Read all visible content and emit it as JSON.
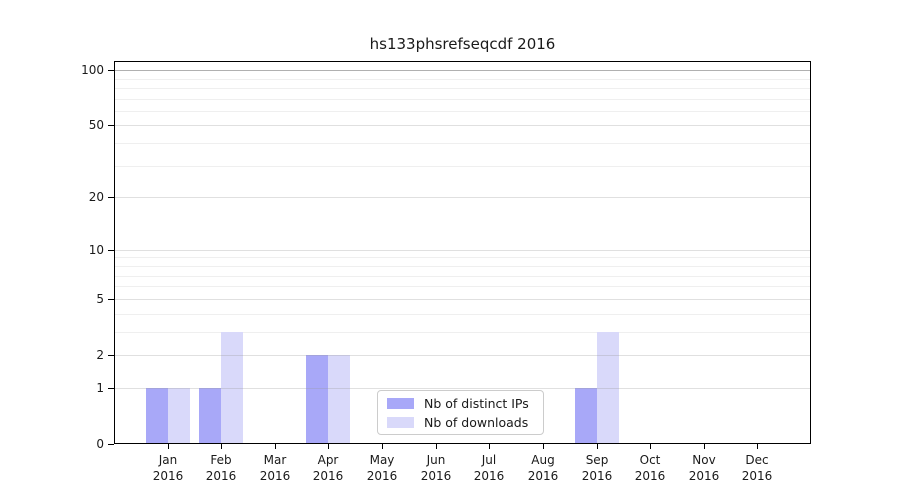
{
  "chart_data": {
    "type": "bar",
    "title": "hs133phsrefseqcdf 2016",
    "categories": [
      "Jan",
      "Feb",
      "Mar",
      "Apr",
      "May",
      "Jun",
      "Jul",
      "Aug",
      "Sep",
      "Oct",
      "Nov",
      "Dec"
    ],
    "x_tick_year": "2016",
    "series": [
      {
        "key": "distinct-ips",
        "name": "Nb of distinct IPs",
        "color": "#a8a8f8",
        "values": [
          1,
          1,
          0,
          2,
          0,
          0,
          0,
          0,
          1,
          0,
          0,
          0
        ]
      },
      {
        "key": "downloads",
        "name": "Nb of downloads",
        "color": "#d9d9fa",
        "values": [
          1,
          3,
          0,
          2,
          0,
          0,
          0,
          0,
          3,
          0,
          0,
          0
        ]
      }
    ],
    "yscale": "log10(1+y)",
    "ylim": [
      0,
      112
    ],
    "yticks": [
      0,
      1,
      2,
      5,
      10,
      20,
      50,
      100
    ],
    "y_minor_gridlines": [
      3,
      4,
      6,
      7,
      8,
      9,
      30,
      40,
      60,
      70,
      80,
      90
    ],
    "emphasized_gridline": 100,
    "grid_colors": {
      "major": "#999999",
      "minor": "#efefef",
      "emphasis": "#6f6f6f"
    },
    "axis_color": "#000000",
    "text_color": "#1a1a1a",
    "legend_position": "lower-center-inside",
    "grid": "on"
  }
}
